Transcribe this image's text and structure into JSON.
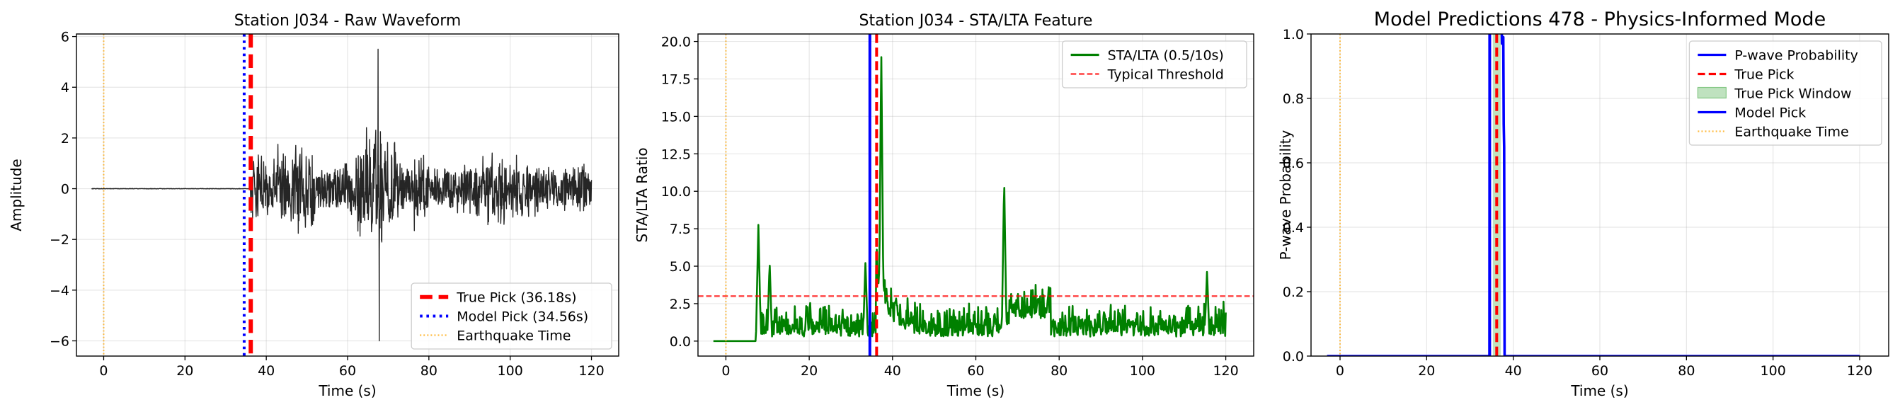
{
  "chart_data": [
    {
      "type": "line",
      "title": "Station J034 - Raw Waveform",
      "xlabel": "Time (s)",
      "ylabel": "Amplitude",
      "xlim": [
        -6.7,
        126.7
      ],
      "ylim": [
        -6.6,
        6.1
      ],
      "xticks": [
        0,
        20,
        40,
        60,
        80,
        100,
        120
      ],
      "yticks": [
        -6,
        -4,
        -2,
        0,
        2,
        4,
        6
      ],
      "ytick_labels": [
        "−6",
        "−4",
        "−2",
        "0",
        "2",
        "4",
        "6"
      ],
      "grid": true,
      "legend_position": "lower-right",
      "series": [
        {
          "name": "",
          "kind": "waveform",
          "color": "#000000",
          "x_start": -3,
          "x_end": 120,
          "onset": 36.18,
          "peak": [
            67.5,
            5.5
          ],
          "trough": [
            67.8,
            -6.0
          ]
        }
      ],
      "vlines": [
        {
          "name": "True Pick (36.18s)",
          "x": 36.18,
          "color": "#ff0000",
          "style": "dashed",
          "width": "thick"
        },
        {
          "name": "Model Pick (34.56s)",
          "x": 34.56,
          "color": "#0000ff",
          "style": "dotted",
          "width": "medium"
        },
        {
          "name": "Earthquake Time",
          "x": 0,
          "color": "#ffa500",
          "style": "dotted",
          "width": "thin"
        }
      ],
      "legend": [
        "True Pick (36.18s)",
        "Model Pick (34.56s)",
        "Earthquake Time"
      ]
    },
    {
      "type": "line",
      "title": "Station J034 - STA/LTA Feature",
      "xlabel": "Time (s)",
      "ylabel": "STA/LTA Ratio",
      "xlim": [
        -6.7,
        126.7
      ],
      "ylim": [
        -1.0,
        20.5
      ],
      "xticks": [
        0,
        20,
        40,
        60,
        80,
        100,
        120
      ],
      "yticks": [
        0.0,
        2.5,
        5.0,
        7.5,
        10.0,
        12.5,
        15.0,
        17.5,
        20.0
      ],
      "ytick_labels": [
        "0.0",
        "2.5",
        "5.0",
        "7.5",
        "10.0",
        "12.5",
        "15.0",
        "17.5",
        "20.0"
      ],
      "grid": true,
      "legend_position": "upper-right",
      "series": [
        {
          "name": "STA/LTA (0.5/10s)",
          "kind": "stalta",
          "color": "#008000",
          "x_start": -3,
          "x_end": 120,
          "spikes": [
            [
              7.8,
              7.8
            ],
            [
              10.5,
              5.3
            ],
            [
              33.5,
              5.3
            ],
            [
              37.3,
              19.5
            ],
            [
              66.8,
              10.9
            ],
            [
              115.5,
              4.7
            ]
          ]
        }
      ],
      "hlines": [
        {
          "name": "Typical Threshold",
          "y": 3.0,
          "color": "#ff0000",
          "style": "dashed"
        }
      ],
      "vlines": [
        {
          "name": "",
          "x": 36.18,
          "color": "#ff0000",
          "style": "dashed"
        },
        {
          "name": "",
          "x": 34.56,
          "color": "#0000ff",
          "style": "solid"
        },
        {
          "name": "",
          "x": 0,
          "color": "#ffa500",
          "style": "dotted"
        }
      ],
      "legend": [
        "STA/LTA (0.5/10s)",
        "Typical Threshold"
      ]
    },
    {
      "type": "line",
      "title": "Model Predictions 478 - Physics-Informed Mode",
      "xlabel": "Time (s)",
      "ylabel": "P-wave Probability",
      "xlim": [
        -6.7,
        126.7
      ],
      "ylim": [
        0.0,
        1.0
      ],
      "xticks": [
        0,
        20,
        40,
        60,
        80,
        100,
        120
      ],
      "yticks": [
        0.0,
        0.2,
        0.4,
        0.6,
        0.8,
        1.0
      ],
      "ytick_labels": [
        "0.0",
        "0.2",
        "0.4",
        "0.6",
        "0.8",
        "1.0"
      ],
      "grid": true,
      "legend_position": "upper-right",
      "series": [
        {
          "name": "P-wave Probability",
          "kind": "probability",
          "color": "#0000ff",
          "x_start": -3,
          "x_end": 120,
          "high_window": [
            34.56,
            38.0
          ],
          "tail": [
            [
              37.9,
              0.65
            ],
            [
              38.0,
              0.0
            ]
          ]
        }
      ],
      "window": {
        "name": "True Pick Window",
        "x0": 35.3,
        "x1": 37.1,
        "color": "#2ca02c",
        "opacity": 0.3
      },
      "vlines": [
        {
          "name": "True Pick",
          "x": 36.18,
          "color": "#ff0000",
          "style": "dashed"
        },
        {
          "name": "Model Pick",
          "x": 34.56,
          "color": "#0000ff",
          "style": "solid"
        },
        {
          "name": "Earthquake Time",
          "x": 0,
          "color": "#ffa500",
          "style": "dotted"
        }
      ],
      "legend": [
        "P-wave Probability",
        "True Pick",
        "True Pick Window",
        "Model Pick",
        "Earthquake Time"
      ]
    }
  ]
}
